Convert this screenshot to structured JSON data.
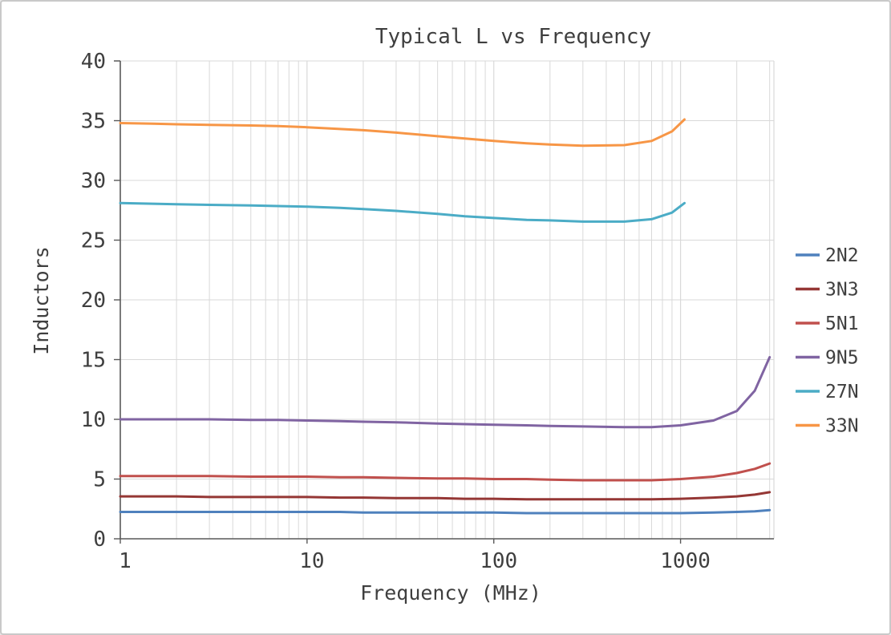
{
  "chart_data": {
    "type": "line",
    "title": "Typical L vs Frequency",
    "xlabel": "Frequency (MHz)",
    "ylabel": "Inductors",
    "x_scale": "log",
    "xlim": [
      1,
      3162
    ],
    "ylim": [
      0,
      40
    ],
    "x_ticks": [
      1,
      10,
      100,
      1000
    ],
    "y_ticks": [
      0,
      5,
      10,
      15,
      20,
      25,
      30,
      35,
      40
    ],
    "grid": true,
    "legend_position": "right",
    "grid_color": "#d9d9d9",
    "axis_color": "#595959",
    "series": [
      {
        "name": "2N2",
        "color": "#4F81BD",
        "x": [
          1,
          1.5,
          2,
          3,
          5,
          7,
          10,
          15,
          20,
          30,
          50,
          70,
          100,
          150,
          200,
          300,
          500,
          700,
          1000,
          1500,
          2000,
          2500,
          3000
        ],
        "values": [
          2.25,
          2.25,
          2.25,
          2.25,
          2.25,
          2.25,
          2.25,
          2.25,
          2.2,
          2.2,
          2.2,
          2.2,
          2.2,
          2.15,
          2.15,
          2.15,
          2.15,
          2.15,
          2.15,
          2.2,
          2.25,
          2.3,
          2.4
        ]
      },
      {
        "name": "3N3",
        "color": "#953735",
        "x": [
          1,
          1.5,
          2,
          3,
          5,
          7,
          10,
          15,
          20,
          30,
          50,
          70,
          100,
          150,
          200,
          300,
          500,
          700,
          1000,
          1500,
          2000,
          2500,
          3000
        ],
        "values": [
          3.55,
          3.55,
          3.55,
          3.5,
          3.5,
          3.5,
          3.5,
          3.45,
          3.45,
          3.4,
          3.4,
          3.35,
          3.35,
          3.3,
          3.3,
          3.3,
          3.3,
          3.3,
          3.35,
          3.45,
          3.55,
          3.7,
          3.9
        ]
      },
      {
        "name": "5N1",
        "color": "#C0504D",
        "x": [
          1,
          1.5,
          2,
          3,
          5,
          7,
          10,
          15,
          20,
          30,
          50,
          70,
          100,
          150,
          200,
          300,
          500,
          700,
          1000,
          1500,
          2000,
          2500,
          3000
        ],
        "values": [
          5.25,
          5.25,
          5.25,
          5.25,
          5.2,
          5.2,
          5.2,
          5.15,
          5.15,
          5.1,
          5.05,
          5.05,
          5.0,
          5.0,
          4.95,
          4.9,
          4.9,
          4.9,
          5.0,
          5.2,
          5.5,
          5.85,
          6.3
        ]
      },
      {
        "name": "9N5",
        "color": "#8064A2",
        "x": [
          1,
          1.5,
          2,
          3,
          5,
          7,
          10,
          15,
          20,
          30,
          50,
          70,
          100,
          150,
          200,
          300,
          500,
          700,
          1000,
          1500,
          2000,
          2500,
          3000
        ],
        "values": [
          10.0,
          10.0,
          10.0,
          10.0,
          9.95,
          9.95,
          9.9,
          9.85,
          9.8,
          9.75,
          9.65,
          9.6,
          9.55,
          9.5,
          9.45,
          9.4,
          9.35,
          9.35,
          9.5,
          9.9,
          10.7,
          12.4,
          15.2
        ]
      },
      {
        "name": "27N",
        "color": "#4BACC6",
        "x": [
          1,
          1.5,
          2,
          3,
          5,
          7,
          10,
          15,
          20,
          30,
          50,
          70,
          100,
          150,
          200,
          300,
          500,
          700,
          900,
          1050
        ],
        "values": [
          28.1,
          28.05,
          28.0,
          27.95,
          27.9,
          27.85,
          27.8,
          27.7,
          27.6,
          27.45,
          27.2,
          27.0,
          26.85,
          26.7,
          26.65,
          26.55,
          26.55,
          26.75,
          27.3,
          28.1
        ]
      },
      {
        "name": "33N",
        "color": "#F79646",
        "x": [
          1,
          1.5,
          2,
          3,
          5,
          7,
          10,
          15,
          20,
          30,
          50,
          70,
          100,
          150,
          200,
          300,
          500,
          700,
          900,
          1050
        ],
        "values": [
          34.8,
          34.75,
          34.7,
          34.65,
          34.6,
          34.55,
          34.45,
          34.3,
          34.2,
          34.0,
          33.7,
          33.5,
          33.3,
          33.1,
          33.0,
          32.9,
          32.95,
          33.3,
          34.1,
          35.1
        ]
      }
    ]
  }
}
